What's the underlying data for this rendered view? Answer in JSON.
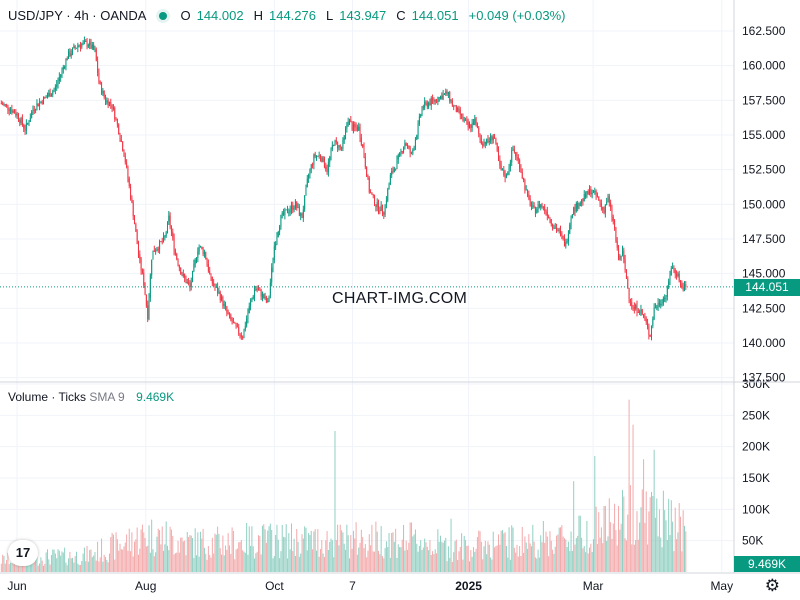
{
  "header": {
    "symbol": "USD/JPY · 4h · OANDA",
    "o_label": "O",
    "o_value": "144.002",
    "h_label": "H",
    "h_value": "144.276",
    "l_label": "L",
    "l_value": "143.947",
    "c_label": "C",
    "c_value": "144.051",
    "change": "+0.049 (+0.03%)"
  },
  "volume_legend": {
    "title": "Volume · Ticks",
    "indicator": "SMA 9",
    "value": "9.469K"
  },
  "watermark": "CHART-IMG.COM",
  "last_price_label": "144.051",
  "last_volume_label": "9.469K",
  "logo_text": "17",
  "colors": {
    "up": "#089981",
    "down": "#f23645",
    "up_vol": "#7ec8b9",
    "down_vol": "#f19b9c",
    "grid": "#f0f3fa"
  },
  "chart_data": [
    {
      "type": "candlestick",
      "title": "USD/JPY · 4h · OANDA",
      "y_ticks": [
        "162.500",
        "160.000",
        "157.500",
        "155.000",
        "152.500",
        "150.000",
        "147.500",
        "145.000",
        "142.500",
        "140.000",
        "137.500"
      ],
      "y_tick_values": [
        162.5,
        160,
        157.5,
        155,
        152.5,
        150,
        147.5,
        145,
        142.5,
        140,
        137.5
      ],
      "ylim": [
        137.0,
        163.5
      ],
      "last_price": 144.051,
      "x_labels": [
        {
          "label": "Jun",
          "t": 0
        },
        {
          "label": "Aug",
          "t": 61
        },
        {
          "label": "Oct",
          "t": 122
        },
        {
          "label": "7",
          "t": 159
        },
        {
          "label": "2025",
          "t": 214
        },
        {
          "label": "Mar",
          "t": 273
        },
        {
          "label": "May",
          "t": 334
        }
      ],
      "day_span": 345,
      "close_path": [
        [
          0,
          157.3
        ],
        [
          4,
          157.0
        ],
        [
          8,
          156.5
        ],
        [
          12,
          155.4
        ],
        [
          16,
          157.0
        ],
        [
          20,
          157.5
        ],
        [
          26,
          158.3
        ],
        [
          32,
          160.7
        ],
        [
          37,
          161.5
        ],
        [
          42,
          161.6
        ],
        [
          45,
          161.0
        ],
        [
          47,
          158.7
        ],
        [
          50,
          157.5
        ],
        [
          53,
          157.2
        ],
        [
          56,
          155.5
        ],
        [
          59,
          153.5
        ],
        [
          63,
          149.5
        ],
        [
          66,
          146.0
        ],
        [
          68,
          144.5
        ],
        [
          70,
          142.0
        ],
        [
          72,
          146.5
        ],
        [
          75,
          147.0
        ],
        [
          78,
          147.5
        ],
        [
          80,
          149.0
        ],
        [
          83,
          146.5
        ],
        [
          86,
          145.0
        ],
        [
          90,
          144.0
        ],
        [
          94,
          147.0
        ],
        [
          97,
          146.5
        ],
        [
          100,
          144.5
        ],
        [
          104,
          143.5
        ],
        [
          108,
          142.0
        ],
        [
          112,
          141.0
        ],
        [
          115,
          140.5
        ],
        [
          118,
          142.5
        ],
        [
          121,
          144.0
        ],
        [
          124,
          143.5
        ],
        [
          127,
          142.8
        ],
        [
          130,
          147.0
        ],
        [
          133,
          149.0
        ],
        [
          136,
          149.5
        ],
        [
          140,
          150.0
        ],
        [
          143,
          149.0
        ],
        [
          146,
          152.0
        ],
        [
          149,
          153.5
        ],
        [
          152,
          153.5
        ],
        [
          155,
          152.5
        ],
        [
          158,
          154.5
        ],
        [
          162,
          154.0
        ],
        [
          165,
          156.2
        ],
        [
          167,
          155.5
        ],
        [
          170,
          155.5
        ],
        [
          172,
          154.0
        ],
        [
          175,
          151.0
        ],
        [
          178,
          150.0
        ],
        [
          182,
          149.5
        ],
        [
          185,
          152.0
        ],
        [
          188,
          153.0
        ],
        [
          192,
          154.5
        ],
        [
          195,
          153.5
        ],
        [
          198,
          155.5
        ],
        [
          200,
          157.0
        ],
        [
          203,
          157.3
        ],
        [
          206,
          157.5
        ],
        [
          209,
          157.8
        ],
        [
          212,
          158.0
        ],
        [
          215,
          157.0
        ],
        [
          218,
          156.5
        ],
        [
          222,
          155.5
        ],
        [
          225,
          156.0
        ],
        [
          228,
          154.5
        ],
        [
          231,
          154.5
        ],
        [
          234,
          155.0
        ],
        [
          237,
          152.5
        ],
        [
          240,
          152.0
        ],
        [
          243,
          154.0
        ],
        [
          246,
          153.0
        ],
        [
          250,
          150.5
        ],
        [
          253,
          149.5
        ],
        [
          256,
          150.0
        ],
        [
          259,
          149.5
        ],
        [
          262,
          148.5
        ],
        [
          265,
          148.0
        ],
        [
          268,
          147.0
        ],
        [
          271,
          149.5
        ],
        [
          274,
          150.0
        ],
        [
          277,
          150.5
        ],
        [
          280,
          151.0
        ],
        [
          283,
          150.5
        ],
        [
          286,
          149.5
        ],
        [
          288,
          150.5
        ],
        [
          291,
          148.5
        ],
        [
          293,
          146.0
        ],
        [
          295,
          146.5
        ],
        [
          298,
          143.5
        ],
        [
          300,
          142.5
        ],
        [
          303,
          142.5
        ],
        [
          306,
          141.5
        ],
        [
          308,
          140.5
        ],
        [
          310,
          142.5
        ],
        [
          313,
          143.0
        ],
        [
          316,
          143.5
        ],
        [
          318,
          145.5
        ],
        [
          321,
          145.0
        ],
        [
          323,
          144.0
        ],
        [
          325,
          144.05
        ]
      ]
    },
    {
      "type": "bar",
      "title": "Volume · Ticks",
      "y_ticks": [
        "300K",
        "250K",
        "200K",
        "150K",
        "100K",
        "50K"
      ],
      "y_tick_values": [
        300000,
        250000,
        200000,
        150000,
        100000,
        50000
      ],
      "ylim": [
        0,
        300000
      ],
      "sma9_last": "9.469K",
      "volume_profile": [
        [
          0,
          22000
        ],
        [
          20,
          28000
        ],
        [
          40,
          30000
        ],
        [
          60,
          55000
        ],
        [
          70,
          70000
        ],
        [
          90,
          55000
        ],
        [
          110,
          55000
        ],
        [
          120,
          60000
        ],
        [
          130,
          60000
        ],
        [
          150,
          58000
        ],
        [
          170,
          60000
        ],
        [
          180,
          62000
        ],
        [
          200,
          58000
        ],
        [
          214,
          45000
        ],
        [
          240,
          55000
        ],
        [
          270,
          65000
        ],
        [
          280,
          80000
        ],
        [
          290,
          90000
        ],
        [
          300,
          110000
        ],
        [
          305,
          115000
        ],
        [
          315,
          95000
        ],
        [
          325,
          80000
        ]
      ],
      "volume_spikes": [
        [
          159,
          225000
        ],
        [
          214,
          85000
        ],
        [
          272,
          145000
        ],
        [
          282,
          185000
        ],
        [
          298,
          275000
        ],
        [
          300,
          235000
        ],
        [
          305,
          180000
        ],
        [
          310,
          195000
        ],
        [
          322,
          110000
        ]
      ]
    }
  ]
}
